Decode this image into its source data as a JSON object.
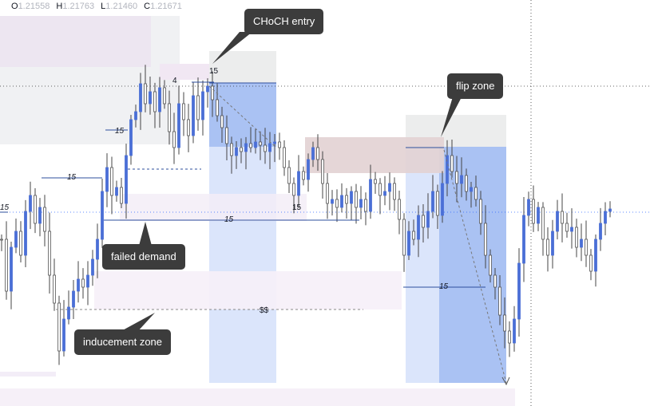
{
  "ohlc": {
    "o_key": "O",
    "o_val": "1.21558",
    "h_key": "H",
    "h_val": "1.21763",
    "l_key": "L",
    "l_val": "1.21460",
    "c_key": "C",
    "c_val": "1.21671"
  },
  "callouts": {
    "choch": "CHoCH entry",
    "flip": "flip zone",
    "failed": "failed demand",
    "inducement": "inducement zone"
  },
  "labels": {
    "n15a": "15",
    "n15b": "15",
    "n15c": "15",
    "n15d": "15",
    "n15e": "15",
    "n15f": "15",
    "n15g": "15",
    "n4": "4",
    "liq": "$$"
  },
  "colors": {
    "bull": "#4a6fd6",
    "bear": "#555555",
    "blue_zone": "#2962ff",
    "callout_bg": "#3c3c3c"
  },
  "chart_data": {
    "type": "candlestick",
    "symbol_open": 1.21558,
    "symbol_high": 1.21763,
    "symbol_low": 1.2146,
    "symbol_close": 1.21671,
    "annotations": [
      "CHoCH entry",
      "flip zone",
      "failed demand",
      "inducement zone",
      "$$"
    ]
  }
}
